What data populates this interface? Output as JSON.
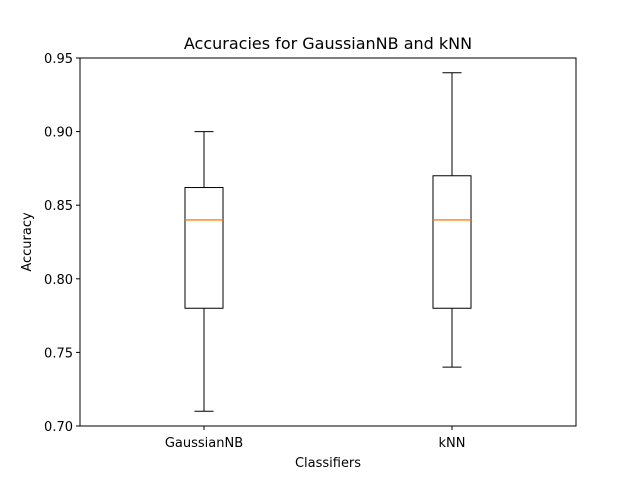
{
  "chart_data": {
    "type": "box",
    "title": "Accuracies for GaussianNB and kNN",
    "xlabel": "Classifiers",
    "ylabel": "Accuracy",
    "ylim": [
      0.7,
      0.95
    ],
    "yticks": [
      "0.70",
      "0.75",
      "0.80",
      "0.85",
      "0.90",
      "0.95"
    ],
    "grid": false,
    "categories": [
      "GaussianNB",
      "kNN"
    ],
    "boxes": [
      {
        "name": "GaussianNB",
        "whisker_low": 0.71,
        "q1": 0.78,
        "median": 0.84,
        "q3": 0.862,
        "whisker_high": 0.9
      },
      {
        "name": "kNN",
        "whisker_low": 0.74,
        "q1": 0.78,
        "median": 0.84,
        "q3": 0.87,
        "whisker_high": 0.94
      }
    ],
    "colors": {
      "box": "#000000",
      "median": "#ff7f0e"
    }
  }
}
